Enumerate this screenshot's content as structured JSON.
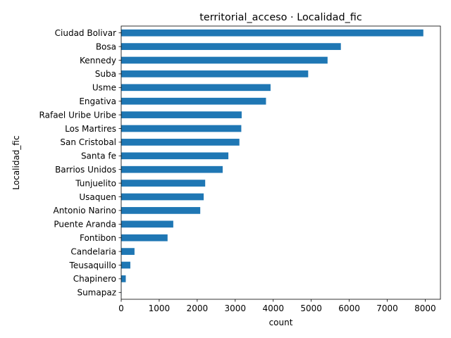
{
  "chart_data": {
    "type": "bar",
    "orientation": "horizontal",
    "title": "territorial_acceso · Localidad_fic",
    "xlabel": "count",
    "ylabel": "Localidad_fic",
    "xlim": [
      0,
      8400
    ],
    "xticks": [
      0,
      1000,
      2000,
      3000,
      4000,
      5000,
      6000,
      7000,
      8000
    ],
    "grid": false,
    "bar_color": "#1f77b4",
    "categories": [
      "Ciudad Bolivar",
      "Bosa",
      "Kennedy",
      "Suba",
      "Usme",
      "Engativa",
      "Rafael Uribe Uribe",
      "Los Martires",
      "San Cristobal",
      "Santa fe",
      "Barrios Unidos",
      "Tunjuelito",
      "Usaquen",
      "Antonio Narino",
      "Puente Aranda",
      "Fontibon",
      "Candelaria",
      "Teusaquillo",
      "Chapinero",
      "Sumapaz"
    ],
    "values": [
      7950,
      5780,
      5430,
      4920,
      3930,
      3810,
      3170,
      3160,
      3110,
      2820,
      2670,
      2210,
      2170,
      2080,
      1370,
      1220,
      350,
      240,
      120,
      5
    ]
  }
}
